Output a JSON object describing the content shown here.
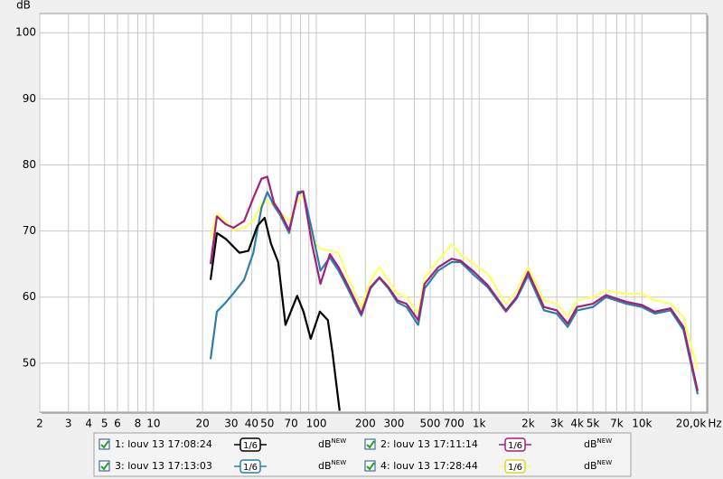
{
  "chart_data": {
    "type": "line",
    "y_label": "dB",
    "x_label": "Hz",
    "xscale": "log",
    "grid": true,
    "xlim": [
      2,
      25000
    ],
    "ylim": [
      42.6,
      102.9
    ],
    "yticks": [
      50,
      60,
      70,
      80,
      90,
      100
    ],
    "xticks": [
      2,
      3,
      4,
      5,
      6,
      8,
      10,
      20,
      30,
      40,
      50,
      70,
      100,
      200,
      300,
      500,
      700,
      {
        "value": 1000,
        "label": "1k"
      },
      {
        "value": 2000,
        "label": "2k"
      },
      {
        "value": 3000,
        "label": "3k"
      },
      {
        "value": 4000,
        "label": "4k"
      },
      {
        "value": 5000,
        "label": "5k"
      },
      {
        "value": 7000,
        "label": "7k"
      },
      {
        "value": 10000,
        "label": "10k"
      },
      {
        "value": 20000,
        "label": "20,0k"
      }
    ],
    "xminor": [
      7,
      9,
      60,
      80,
      90,
      400,
      600,
      800,
      900,
      6000,
      8000,
      9000
    ],
    "series": [
      {
        "name": "1: louv 13 17:08:24",
        "color": "#000000",
        "smoothing": "1/6",
        "unit": "dB",
        "badge": "NEW",
        "x": [
          22.4,
          24.5,
          27.8,
          33.7,
          38.2,
          43.5,
          48.1,
          52.6,
          58.3,
          64.6,
          69.7,
          76.2,
          83.4,
          92.3,
          105,
          117.7,
          125.5,
          139
        ],
        "values": [
          62.6,
          69.7,
          68.8,
          66.7,
          67,
          70.8,
          72,
          68.1,
          65.3,
          55.8,
          57.8,
          60.2,
          57.8,
          53.7,
          57.8,
          56.5,
          51.7,
          42.8
        ]
      },
      {
        "name": "2: louv 13 17:11:14",
        "color": "#a0207a",
        "smoothing": "1/6",
        "unit": "dB",
        "badge": "NEW",
        "x": [
          22.4,
          24.5,
          27.8,
          31,
          36,
          41,
          46,
          50,
          55,
          60,
          68,
          77,
          83,
          94,
          106,
          121,
          137,
          156,
          189,
          215,
          244,
          277,
          315,
          358,
          422,
          462,
          559,
          677,
          770,
          932,
          1130,
          1460,
          1700,
          2000,
          2500,
          3000,
          3500,
          4000,
          5000,
          6000,
          8000,
          10000,
          12000,
          15000,
          18000,
          22000
        ],
        "values": [
          65,
          72.2,
          71,
          70.5,
          71.5,
          75,
          77.9,
          78.2,
          74.2,
          72.8,
          70.1,
          75.6,
          76,
          68,
          62,
          66.5,
          64.5,
          61.8,
          57.5,
          61.5,
          63,
          61.5,
          59.5,
          59,
          56.5,
          62,
          64.5,
          65.8,
          65.5,
          63.8,
          61.8,
          58,
          60,
          63.8,
          58.5,
          58,
          56,
          58.5,
          59,
          60.3,
          59.3,
          58.8,
          57.8,
          58.3,
          55.5,
          45.8
        ]
      },
      {
        "name": "3: louv 13 17:13:03",
        "color": "#2d7fa8",
        "smoothing": "1/6",
        "unit": "dB",
        "badge": "NEW",
        "x": [
          22.4,
          24.5,
          27.8,
          31,
          36,
          41,
          46,
          50,
          55,
          60,
          68,
          77,
          83,
          94,
          106,
          121,
          137,
          156,
          189,
          215,
          244,
          277,
          315,
          358,
          422,
          462,
          559,
          677,
          770,
          932,
          1130,
          1460,
          1700,
          2000,
          2500,
          3000,
          3500,
          4000,
          5000,
          6000,
          8000,
          10000,
          12000,
          15000,
          18000,
          22000
        ],
        "values": [
          50.6,
          57.8,
          59.2,
          60.6,
          62.6,
          66.7,
          73.5,
          75.9,
          73.8,
          72.4,
          69.7,
          75.9,
          76,
          70.1,
          64,
          66,
          64,
          61.3,
          57.2,
          61.3,
          62.9,
          61.3,
          59.2,
          58.5,
          55.8,
          61.3,
          64,
          65.3,
          65.3,
          63.3,
          61.5,
          57.8,
          59.8,
          63.3,
          58,
          57.5,
          55.5,
          58,
          58.5,
          60,
          59,
          58.5,
          57.5,
          58,
          55,
          45.3
        ]
      },
      {
        "name": "4: louv 13 17:28:44",
        "color": "#ffff66",
        "smoothing": "1/6",
        "unit": "dB",
        "badge": "NEW",
        "x": [
          22.4,
          24.5,
          27.8,
          31,
          36,
          41,
          46,
          50,
          55,
          60,
          68,
          77,
          83,
          94,
          106,
          121,
          137,
          156,
          189,
          215,
          244,
          277,
          315,
          358,
          422,
          462,
          559,
          677,
          770,
          932,
          1130,
          1460,
          1700,
          2000,
          2500,
          3000,
          3500,
          4000,
          5000,
          6000,
          8000,
          10000,
          12000,
          15000,
          18000,
          22000
        ],
        "values": [
          68.8,
          72.6,
          71.5,
          70.1,
          70.5,
          71.5,
          74.2,
          74.5,
          73.8,
          72.8,
          71.5,
          74.5,
          75.6,
          69,
          67.3,
          67,
          66.7,
          63,
          58.5,
          62.5,
          64.5,
          62.5,
          60.5,
          60,
          57.5,
          63,
          65.5,
          68,
          66.5,
          65,
          63.5,
          59,
          61,
          64.5,
          59.5,
          59,
          57,
          59.5,
          60,
          61,
          60.5,
          60.5,
          59.5,
          59,
          57,
          49
        ]
      }
    ]
  }
}
